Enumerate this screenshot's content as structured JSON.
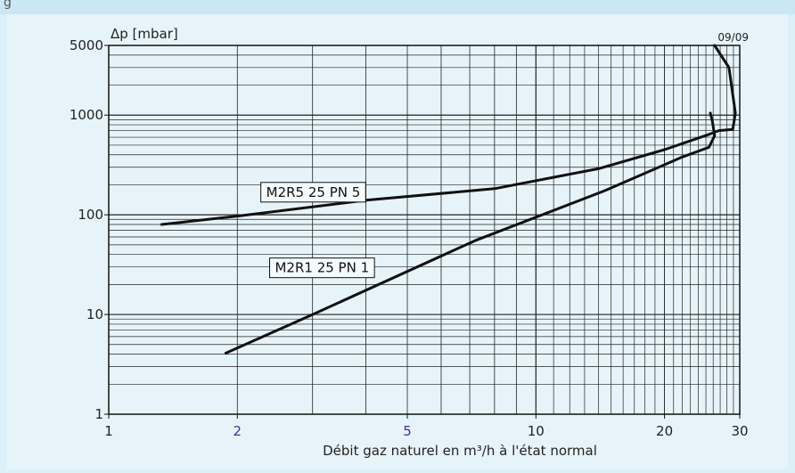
{
  "header": {
    "fragment": "g"
  },
  "chart_data": {
    "type": "line",
    "scale": {
      "x": "log",
      "y": "log"
    },
    "xlim": [
      1,
      30
    ],
    "ylim": [
      1,
      5000
    ],
    "xlabel": "Débit gaz naturel en m³/h à l'état normal",
    "ylabel": "Δp [mbar]",
    "code": "09/09",
    "x_ticks": [
      {
        "value": 1,
        "label": "1",
        "color": "#222222"
      },
      {
        "value": 2,
        "label": "2",
        "color": "#4b2c8a"
      },
      {
        "value": 5,
        "label": "5",
        "color": "#4b2c8a"
      },
      {
        "value": 10,
        "label": "10",
        "color": "#222222"
      },
      {
        "value": 20,
        "label": "20",
        "color": "#222222"
      },
      {
        "value": 30,
        "label": "30",
        "color": "#222222"
      }
    ],
    "y_ticks": [
      {
        "value": 1,
        "label": "1"
      },
      {
        "value": 10,
        "label": "10"
      },
      {
        "value": 100,
        "label": "100"
      },
      {
        "value": 1000,
        "label": "1000"
      },
      {
        "value": 5000,
        "label": "5000"
      }
    ],
    "grid": true,
    "series": [
      {
        "name": "M2R5 25 PN 5",
        "points": [
          [
            1.33,
            80
          ],
          [
            2,
            97
          ],
          [
            4,
            140
          ],
          [
            8,
            183
          ],
          [
            14,
            290
          ],
          [
            20,
            450
          ],
          [
            25.4,
            640
          ],
          [
            26.8,
            700
          ],
          [
            28.9,
            720
          ],
          [
            29.3,
            1050
          ],
          [
            28.3,
            3000
          ],
          [
            26.2,
            5000
          ]
        ]
      },
      {
        "name": "M2R1 25 PN 1",
        "points": [
          [
            1.88,
            4.1
          ],
          [
            3,
            10
          ],
          [
            7.2,
            55
          ],
          [
            14.5,
            175
          ],
          [
            22,
            380
          ],
          [
            25.4,
            475
          ],
          [
            26.2,
            620
          ],
          [
            25.9,
            860
          ],
          [
            25.6,
            1050
          ]
        ]
      }
    ],
    "labels": [
      {
        "series": 0,
        "text": "M2R5 25 PN 5",
        "x": 2.27,
        "y": 172
      },
      {
        "series": 1,
        "text": "M2R1 25 PN 1",
        "x": 2.38,
        "y": 30
      }
    ]
  }
}
